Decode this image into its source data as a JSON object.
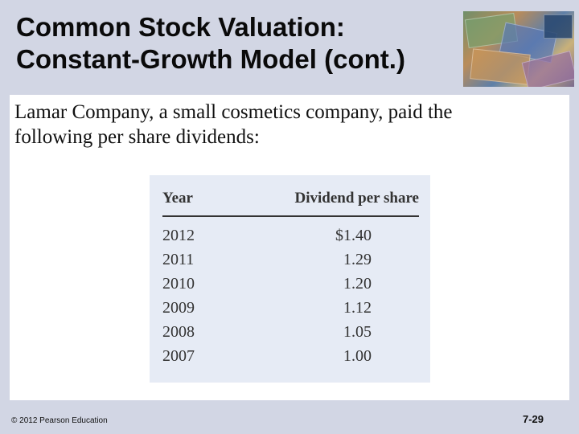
{
  "slide": {
    "title_lines": [
      "Common Stock Valuation:",
      "Constant-Growth Model (cont.)"
    ],
    "intro_lines": [
      "Lamar Company, a small cosmetics company, paid the",
      "following per share dividends:"
    ],
    "table": {
      "col_year": "Year",
      "col_dividend": "Dividend per share",
      "rows": [
        {
          "year": "2012",
          "dividend": "$1.40"
        },
        {
          "year": "2011",
          "dividend": "1.29"
        },
        {
          "year": "2010",
          "dividend": "1.20"
        },
        {
          "year": "2009",
          "dividend": "1.12"
        },
        {
          "year": "2008",
          "dividend": "1.05"
        },
        {
          "year": "2007",
          "dividend": "1.00"
        }
      ]
    },
    "copyright": "© 2012 Pearson Education",
    "page_number": "7-29",
    "image_icon": "currency-banknotes-photo"
  }
}
